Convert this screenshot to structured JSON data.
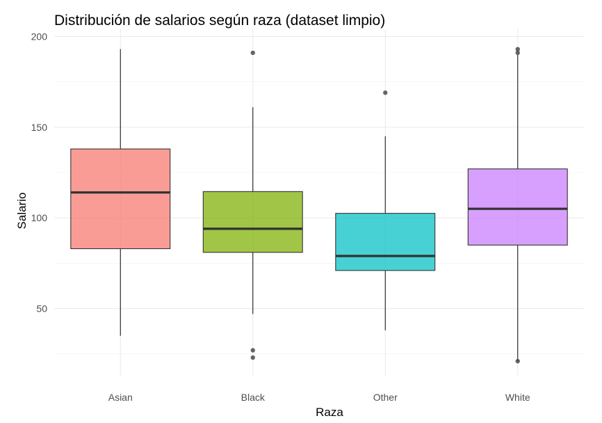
{
  "chart_data": {
    "type": "boxplot",
    "title": "Distribución de salarios según raza (dataset limpio)",
    "xlabel": "Raza",
    "ylabel": "Salario",
    "ylim": [
      13,
      204
    ],
    "yticks": [
      50,
      100,
      150,
      200
    ],
    "grid": true,
    "legend": "none",
    "categories": [
      "Asian",
      "Black",
      "Other",
      "White"
    ],
    "boxes": [
      {
        "category": "Asian",
        "color": "#F8766D",
        "whisker_low": 35,
        "q1": 83,
        "median": 114,
        "q3": 138,
        "whisker_high": 193,
        "outliers": []
      },
      {
        "category": "Black",
        "color": "#7CAE00",
        "whisker_low": 47,
        "q1": 81,
        "median": 94,
        "q3": 114.5,
        "whisker_high": 161,
        "outliers": [
          27,
          23,
          191
        ]
      },
      {
        "category": "Other",
        "color": "#00BFC4",
        "whisker_low": 38,
        "q1": 71,
        "median": 79,
        "q3": 102.5,
        "whisker_high": 145,
        "outliers": [
          169
        ]
      },
      {
        "category": "White",
        "color": "#C77CFF",
        "whisker_low": 21,
        "q1": 85,
        "median": 105,
        "q3": 127,
        "whisker_high": 190,
        "outliers": [
          21,
          191,
          193
        ]
      }
    ]
  }
}
